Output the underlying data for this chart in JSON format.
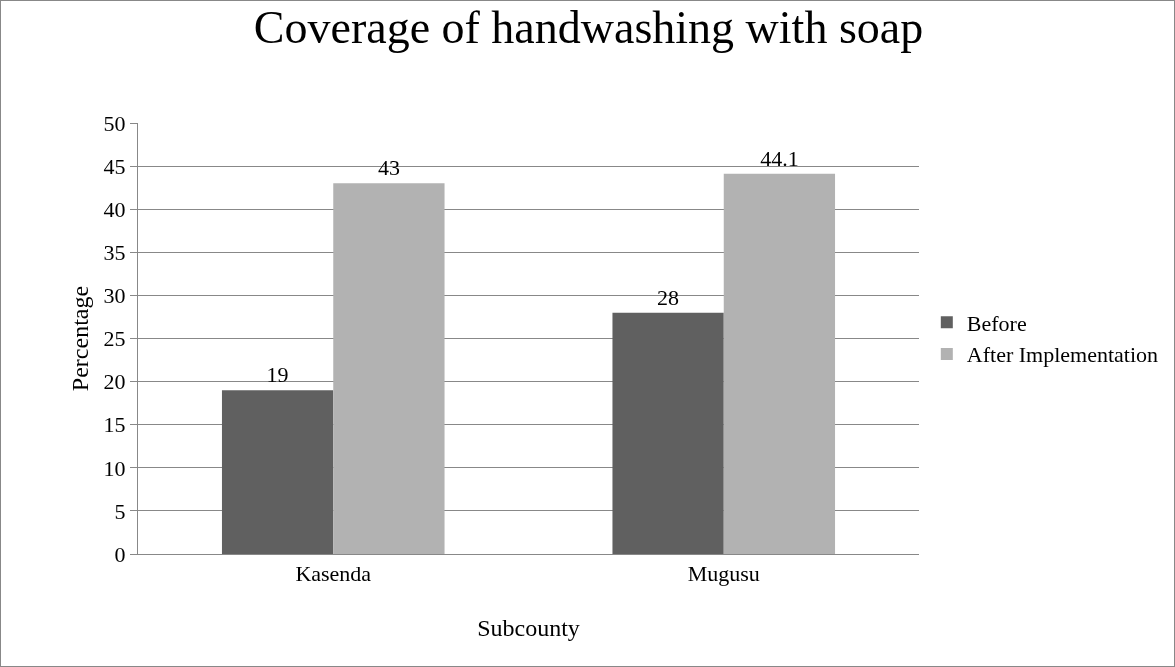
{
  "chart_data": {
    "type": "bar",
    "title": "Coverage of handwashing with soap",
    "xlabel": "Subcounty",
    "ylabel": "Percentage",
    "categories": [
      "Kasenda",
      "Mugusu"
    ],
    "series": [
      {
        "name": "Before",
        "color": "#606060",
        "values": [
          19,
          28
        ]
      },
      {
        "name": "After Implementation",
        "color": "#b2b2b2",
        "values": [
          43,
          44.1
        ]
      }
    ],
    "ylim": [
      0,
      50
    ],
    "yticks": [
      0,
      5,
      10,
      15,
      20,
      25,
      30,
      35,
      40,
      45,
      50
    ],
    "grid": "y",
    "legend": "right",
    "data_labels": true
  }
}
